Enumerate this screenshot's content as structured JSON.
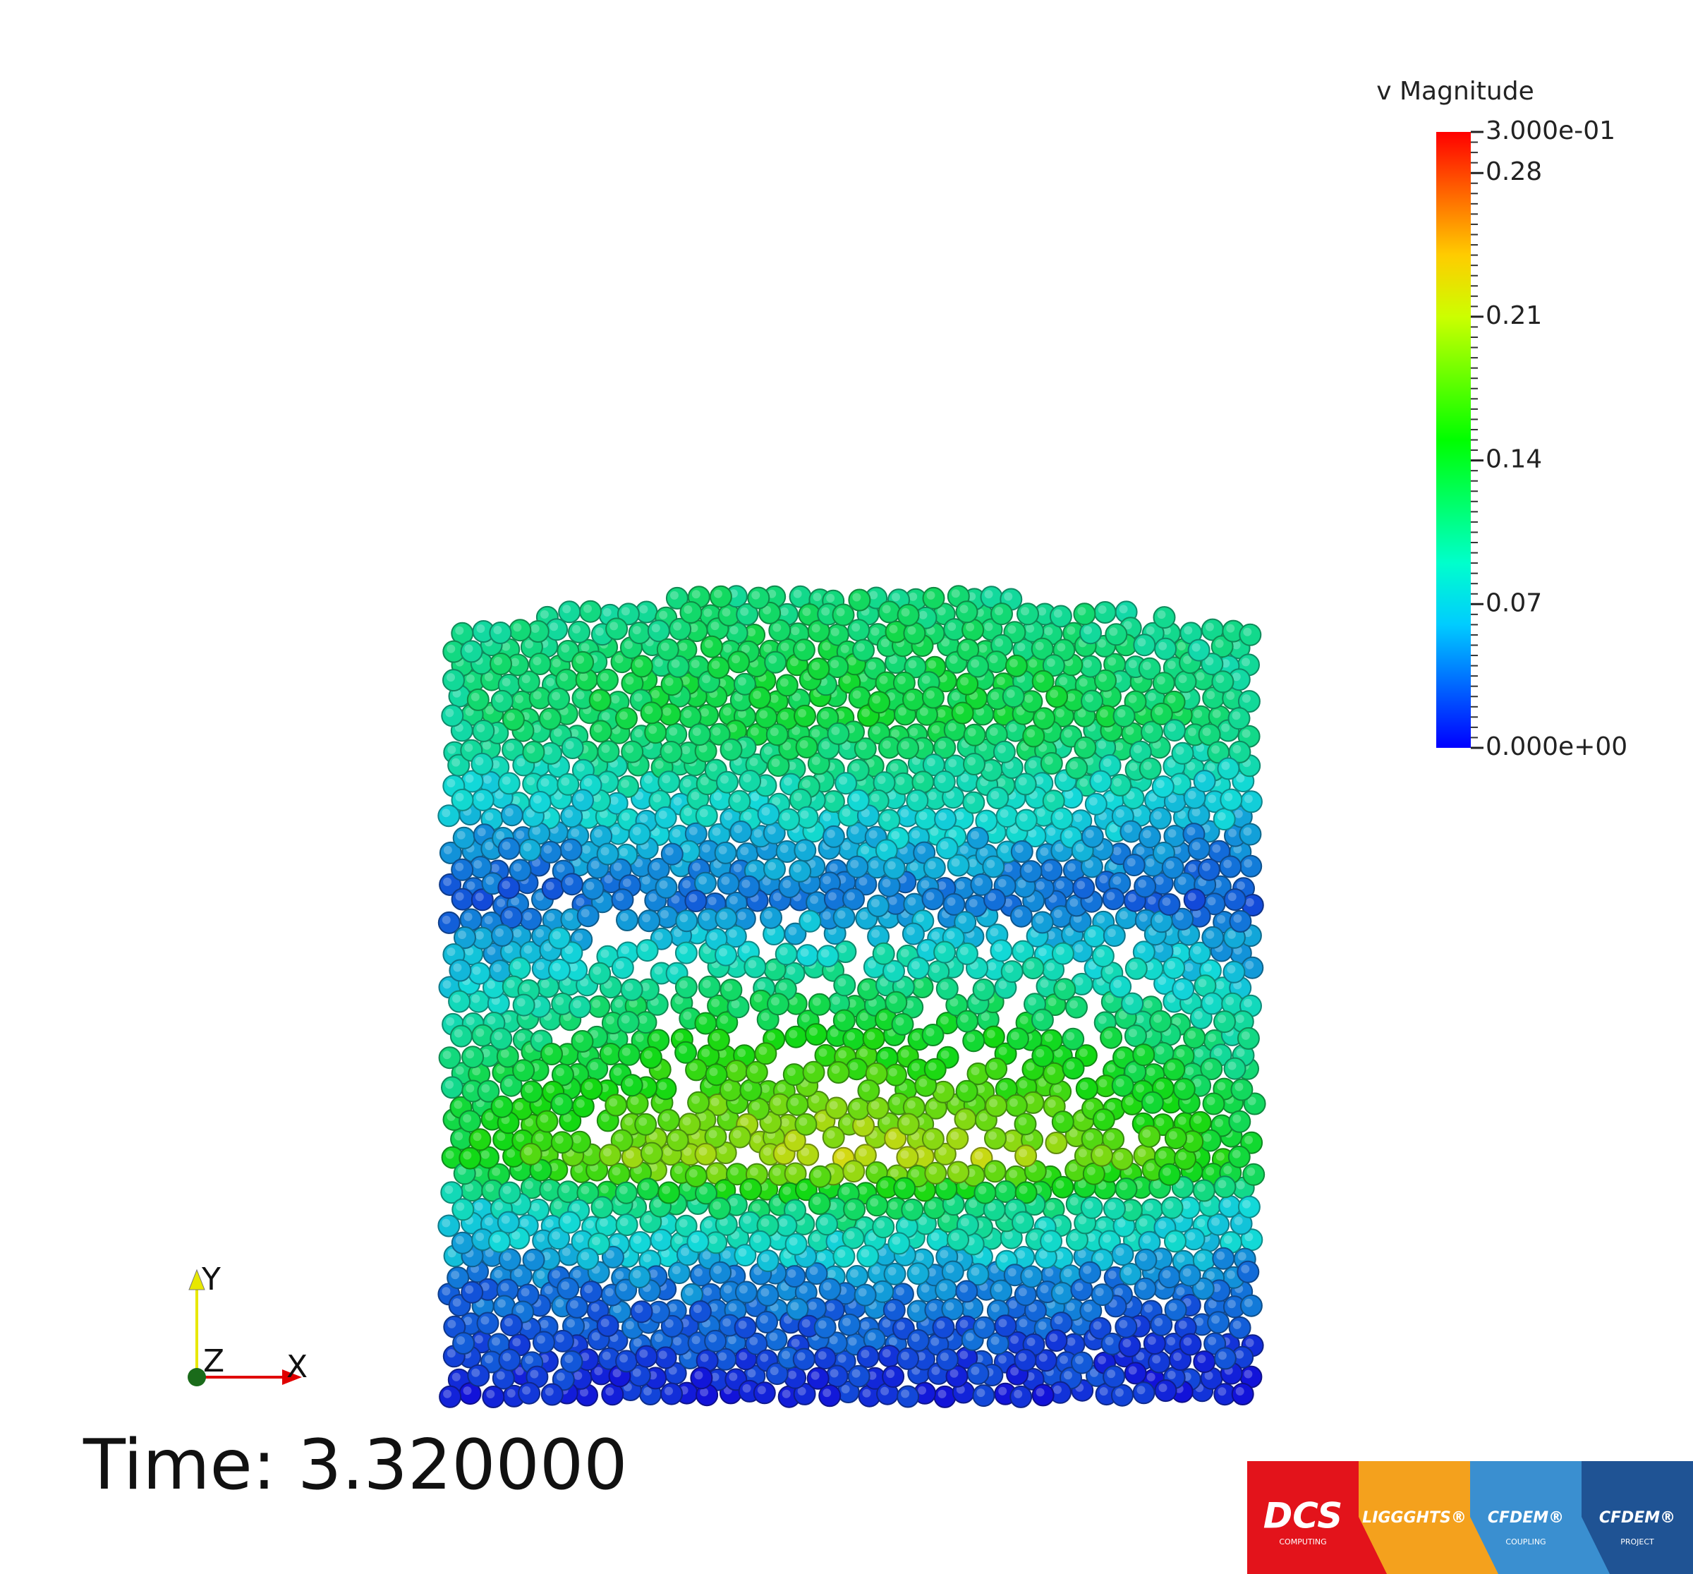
{
  "colorbar": {
    "title": "v Magnitude",
    "range": [
      0,
      0.3
    ],
    "ticks": [
      {
        "value": 0.3,
        "label": "3.000e-01"
      },
      0.28,
      0.21,
      0.14,
      0.07,
      {
        "value": 0,
        "label": "0.000e+00"
      }
    ]
  },
  "axes": {
    "x": "X",
    "y": "Y",
    "z": "Z"
  },
  "time_label": "Time: 3.320000",
  "logos": [
    {
      "name": "DCS",
      "sub": "COMPUTING"
    },
    {
      "name": "LIGGGHTS®"
    },
    {
      "name": "CFDEM®",
      "sub": "COUPLING"
    },
    {
      "name": "CFDEM®",
      "sub": "PROJECT"
    }
  ]
}
